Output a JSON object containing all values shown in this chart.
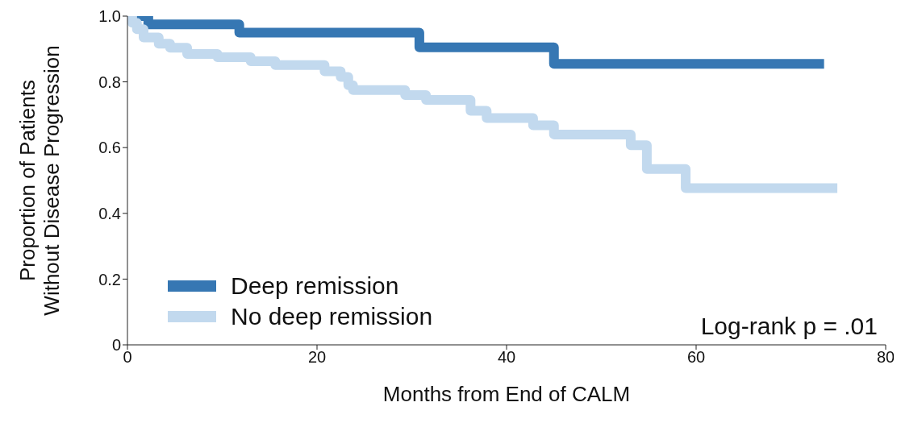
{
  "chart_data": {
    "type": "step",
    "xlabel": "Months from End of CALM",
    "ylabel": "Proportion of Patients\nWithout Disease Progression",
    "xlim": [
      0,
      80
    ],
    "xticks": [
      0,
      20,
      40,
      60,
      80
    ],
    "ylim": [
      0,
      1
    ],
    "yticks": [
      0,
      0.2,
      0.4,
      0.6,
      0.8,
      {
        "value": 1,
        "label": "1.0"
      }
    ],
    "grid": false,
    "legend": "bottom left",
    "marker": "none",
    "line_style": "solid",
    "annotations": [
      "Log-rank p = .01"
    ],
    "series": [
      {
        "name": "Deep remission",
        "color": "#3677b3",
        "x": [
          0,
          2.2,
          11.8,
          30.8,
          45,
          73.5
        ],
        "values": [
          1,
          0.975,
          0.95,
          0.905,
          0.855,
          0.855
        ]
      },
      {
        "name": "No deep remission",
        "color": "#c2d9ee",
        "x": [
          0,
          0.5,
          1,
          1.7,
          3.3,
          4.5,
          6.3,
          9.5,
          13,
          15.6,
          20.8,
          22.5,
          23.3,
          23.8,
          29.3,
          31.5,
          36.2,
          37.9,
          42.8,
          45,
          53.1,
          54.8,
          58.9,
          74.9
        ],
        "values": [
          1,
          0.98,
          0.96,
          0.935,
          0.916,
          0.904,
          0.885,
          0.875,
          0.863,
          0.851,
          0.832,
          0.815,
          0.79,
          0.775,
          0.76,
          0.745,
          0.712,
          0.69,
          0.668,
          0.64,
          0.607,
          0.535,
          0.477,
          0.477
        ]
      }
    ]
  }
}
